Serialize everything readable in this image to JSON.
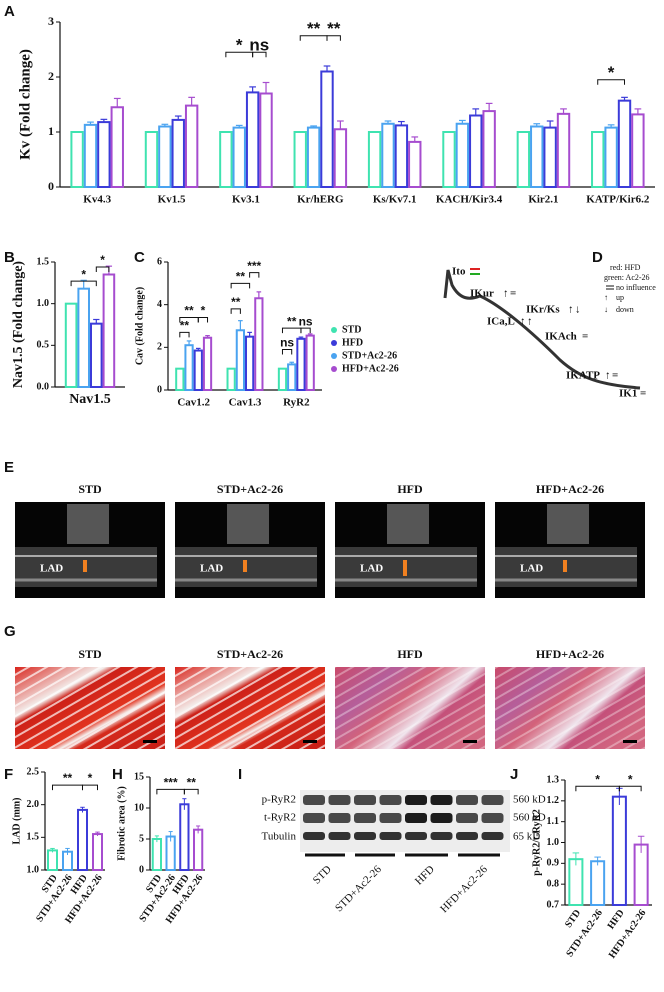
{
  "panel_labels": [
    "A",
    "B",
    "C",
    "D",
    "E",
    "G",
    "F",
    "H",
    "I",
    "J"
  ],
  "chart_data": [
    {
      "type": "bar",
      "y_label": "Kv (Fold change)",
      "categories": [
        "Kv4.3",
        "Kv1.5",
        "Kv3.1",
        "Kr/hERG",
        "Ks/Kv7.1",
        "KACH/Kir3.4",
        "Kir2.1",
        "KATP/Kir6.2"
      ],
      "series": [
        {
          "name": "STD",
          "color": "#3fe3b0",
          "values": [
            1,
            1,
            1,
            1,
            1,
            1,
            1,
            1
          ],
          "errors": [
            0,
            0,
            0,
            0,
            0,
            0,
            0,
            0
          ]
        },
        {
          "name": "STD+Ac2-26",
          "color": "#4aa3f0",
          "values": [
            1.13,
            1.1,
            1.08,
            1.08,
            1.15,
            1.15,
            1.1,
            1.08
          ],
          "errors": [
            0.05,
            0.04,
            0.04,
            0.03,
            0.05,
            0.06,
            0.05,
            0.05
          ]
        },
        {
          "name": "HFD",
          "color": "#3b3bd9",
          "values": [
            1.18,
            1.22,
            1.72,
            2.1,
            1.12,
            1.3,
            1.08,
            1.57
          ],
          "errors": [
            0.05,
            0.07,
            0.1,
            0.1,
            0.07,
            0.12,
            0.12,
            0.06
          ]
        },
        {
          "name": "HFD+Ac2-26",
          "color": "#a64ccf",
          "values": [
            1.45,
            1.48,
            1.7,
            1.05,
            0.82,
            1.38,
            1.33,
            1.32
          ],
          "errors": [
            0.16,
            0.15,
            0.2,
            0.15,
            0.09,
            0.14,
            0.09,
            0.1
          ]
        }
      ],
      "ylim": [
        0,
        3
      ],
      "yticks": [
        0,
        1,
        2,
        3
      ],
      "annotations": [
        {
          "text": "*"
        },
        {
          "text": "ns"
        },
        {
          "text": "**"
        },
        {
          "text": "**"
        },
        {
          "text": "*"
        }
      ]
    },
    {
      "type": "bar",
      "y_label": "Nav1.5 (Fold change)",
      "categories": [
        "Nav1.5"
      ],
      "series": [
        {
          "name": "STD",
          "color": "#3fe3b0",
          "values": [
            1.0
          ],
          "errors": [
            0
          ]
        },
        {
          "name": "STD+Ac2-26",
          "color": "#4aa3f0",
          "values": [
            1.18
          ],
          "errors": [
            0.1
          ]
        },
        {
          "name": "HFD",
          "color": "#3b3bd9",
          "values": [
            0.76
          ],
          "errors": [
            0.05
          ]
        },
        {
          "name": "HFD+Ac2-26",
          "color": "#a64ccf",
          "values": [
            1.35
          ],
          "errors": [
            0.1
          ]
        }
      ],
      "ylim": [
        0,
        1.5
      ],
      "yticks": [
        {
          "value": 0,
          "label": "0.0"
        },
        {
          "value": 0.5,
          "label": "0.5"
        },
        {
          "value": 1,
          "label": "1.0"
        },
        {
          "value": 1.5,
          "label": "1.5"
        }
      ],
      "annotations": [
        {
          "text": "*"
        },
        {
          "text": "*"
        }
      ]
    },
    {
      "type": "bar",
      "y_label": "Cav (Fold change)",
      "categories": [
        "Cav1.2",
        "Cav1.3",
        "RyR2"
      ],
      "series": [
        {
          "name": "STD",
          "color": "#3fe3b0",
          "values": [
            1,
            1,
            1
          ],
          "errors": [
            0,
            0,
            0
          ]
        },
        {
          "name": "HFD",
          "color": "#3b3bd9",
          "values": [
            1.85,
            2.5,
            2.4
          ],
          "errors": [
            0.1,
            0.2,
            0.08
          ]
        },
        {
          "name": "STD+Ac2-26",
          "color": "#4aa3f0",
          "values": [
            2.1,
            2.8,
            1.2
          ],
          "errors": [
            0.2,
            0.45,
            0.1
          ]
        },
        {
          "name": "HFD+Ac2-26",
          "color": "#a64ccf",
          "values": [
            2.45,
            4.3,
            2.55
          ],
          "errors": [
            0.1,
            0.3,
            0.08
          ]
        }
      ],
      "ylim": [
        0,
        6
      ],
      "yticks": [
        0,
        2,
        4,
        6
      ],
      "legend": true,
      "legend_note": "INa",
      "annotations": [
        {
          "text": "**"
        },
        {
          "text": "**"
        },
        {
          "text": "*"
        },
        {
          "text": "**"
        },
        {
          "text": "**"
        },
        {
          "text": "***"
        },
        {
          "text": "ns"
        },
        {
          "text": "**"
        },
        {
          "text": "ns"
        }
      ]
    },
    {
      "type": "bar",
      "y_label": "LAD (mm)",
      "categories": [
        "STD",
        "STD+Ac2-26",
        "HFD",
        "HFD+Ac2-26"
      ],
      "values": [
        1.3,
        1.28,
        1.92,
        1.55
      ],
      "errors": [
        0.03,
        0.05,
        0.04,
        0.03
      ],
      "colors": [
        "#3fe3b0",
        "#4aa3f0",
        "#3b3bd9",
        "#a64ccf"
      ],
      "ylim": [
        1,
        2.5
      ],
      "yticks": [
        {
          "value": 1,
          "label": "1.0"
        },
        {
          "value": 1.5,
          "label": "1.5"
        },
        {
          "value": 2,
          "label": "2.0"
        },
        {
          "value": 2.5,
          "label": "2.5"
        }
      ],
      "annotations": [
        {
          "text": "**"
        },
        {
          "text": "*"
        }
      ]
    },
    {
      "type": "bar",
      "y_label": "Fibrotic area (%)",
      "categories": [
        "STD",
        "STD+Ac2-26",
        "HFD",
        "HFD+Ac2-26"
      ],
      "values": [
        5,
        5.4,
        10.6,
        6.5
      ],
      "errors": [
        0.5,
        0.8,
        0.9,
        0.6
      ],
      "colors": [
        "#3fe3b0",
        "#4aa3f0",
        "#3b3bd9",
        "#a64ccf"
      ],
      "ylim": [
        0,
        15
      ],
      "yticks": [
        0,
        5,
        10,
        15
      ],
      "annotations": [
        {
          "text": "***"
        },
        {
          "text": "**"
        }
      ]
    },
    {
      "type": "bar",
      "y_label": "p-RyR2/t-RyR2",
      "categories": [
        "STD",
        "STD+Ac2-26",
        "HFD",
        "HFD+Ac2-26"
      ],
      "values": [
        0.92,
        0.91,
        1.22,
        0.99
      ],
      "errors": [
        0.03,
        0.02,
        0.04,
        0.04
      ],
      "colors": [
        "#3fe3b0",
        "#4aa3f0",
        "#3b3bd9",
        "#a64ccf"
      ],
      "ylim": [
        0.7,
        1.3
      ],
      "yticks": [
        0.7,
        0.8,
        0.9,
        {
          "value": 1,
          "label": "1.0"
        },
        1.1,
        1.2,
        1.3
      ],
      "annotations": [
        {
          "text": "*"
        },
        {
          "text": "*"
        }
      ]
    }
  ],
  "diagram_d": {
    "currents": [
      "Ito",
      "IKur",
      "IKr/Ks",
      "ICa,L",
      "IKAch",
      "IKATP",
      "IK1"
    ],
    "legend": [
      "red:  HFD",
      "green:  Ac2-26",
      "no influence",
      "up",
      "down"
    ]
  },
  "echo_e": {
    "groups": [
      "STD",
      "STD+Ac2-26",
      "HFD",
      "HFD+Ac2-26"
    ],
    "marker": "LAD"
  },
  "histology_g": {
    "groups": [
      "STD",
      "STD+Ac2-26",
      "HFD",
      "HFD+Ac2-26"
    ]
  },
  "blot_i": {
    "proteins": [
      "p-RyR2",
      "t-RyR2",
      "Tubulin"
    ],
    "sizes": [
      "560 kD",
      "560 kD",
      "65 kD"
    ],
    "groups": [
      "STD",
      "STD+Ac2-26",
      "HFD",
      "HFD+Ac2-26"
    ]
  }
}
